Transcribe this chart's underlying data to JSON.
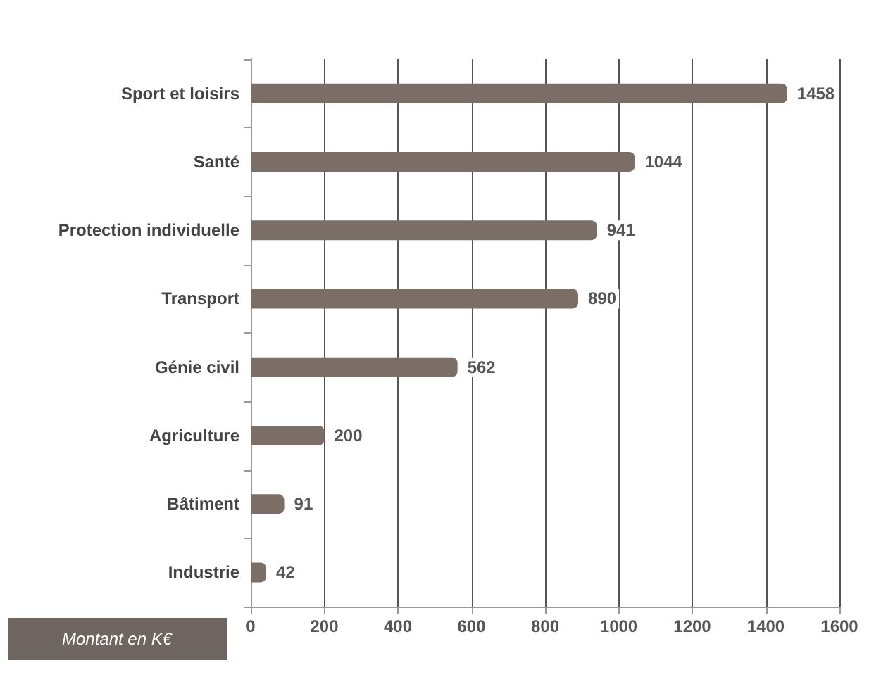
{
  "chart_data": {
    "type": "bar",
    "orientation": "horizontal",
    "categories": [
      "Sport et loisirs",
      "Santé",
      "Protection individuelle",
      "Transport",
      "Génie civil",
      "Agriculture",
      "Bâtiment",
      "Industrie"
    ],
    "values": [
      1458,
      1044,
      941,
      890,
      562,
      200,
      91,
      42
    ],
    "color": "#7a6e66",
    "xlim": [
      0,
      1600
    ],
    "xticks": [
      0,
      200,
      400,
      600,
      800,
      1000,
      1200,
      1400,
      1600
    ],
    "grid": "x",
    "data_labels": true,
    "annotations": [
      "Montant en K€"
    ]
  }
}
